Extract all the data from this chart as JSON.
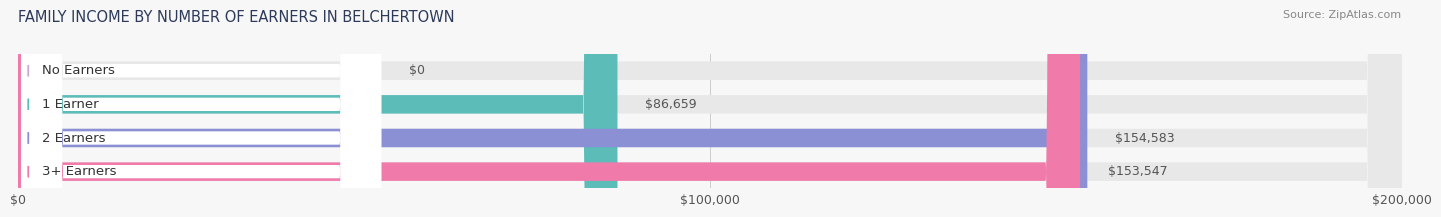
{
  "title": "FAMILY INCOME BY NUMBER OF EARNERS IN BELCHERTOWN",
  "source": "Source: ZipAtlas.com",
  "categories": [
    "No Earners",
    "1 Earner",
    "2 Earners",
    "3+ Earners"
  ],
  "values": [
    0,
    86659,
    154583,
    153547
  ],
  "bar_colors": [
    "#c9a8d4",
    "#5bbcb8",
    "#8b8fd4",
    "#f07aaa"
  ],
  "bar_height": 0.55,
  "xlim": [
    0,
    200000
  ],
  "xticks": [
    0,
    100000,
    200000
  ],
  "xtick_labels": [
    "$0",
    "$100,000",
    "$200,000"
  ],
  "value_labels": [
    "$0",
    "$86,659",
    "$154,583",
    "$153,547"
  ],
  "bg_color": "#f7f7f7",
  "bar_bg_color": "#e8e8e8",
  "title_fontsize": 10.5,
  "source_fontsize": 8,
  "tick_fontsize": 9,
  "label_fontsize": 9.5,
  "value_fontsize": 9,
  "title_color": "#2d3a5a",
  "source_color": "#888888",
  "tick_color": "#555555",
  "label_text_color": "#333333",
  "value_text_color": "#555555"
}
